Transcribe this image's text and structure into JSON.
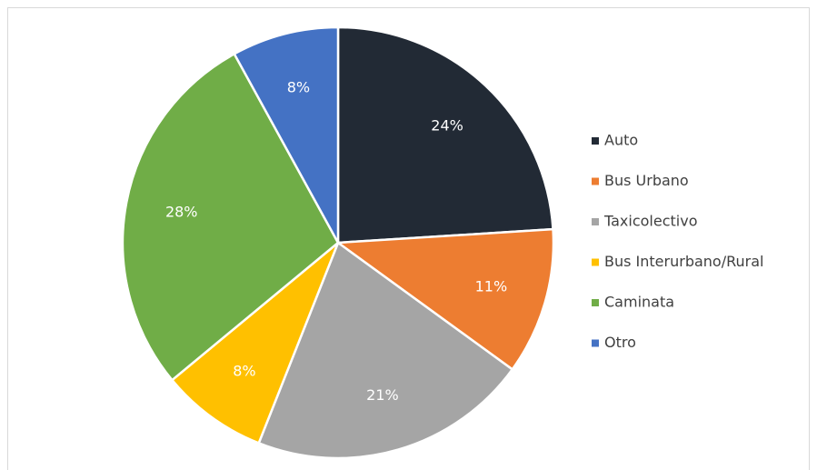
{
  "chart_data": {
    "type": "pie",
    "categories": [
      "Auto",
      "Bus Urbano",
      "Taxicolectivo",
      "Bus Interurbano/Rural",
      "Caminata",
      "Otro"
    ],
    "values": [
      24,
      11,
      21,
      8,
      28,
      8
    ],
    "value_labels": [
      "24%",
      "11%",
      "21%",
      "8%",
      "28%",
      "8%"
    ],
    "colors": [
      "#222a35",
      "#ed7d31",
      "#a5a5a5",
      "#ffc000",
      "#70ad47",
      "#4472c4"
    ],
    "legend": "right"
  }
}
